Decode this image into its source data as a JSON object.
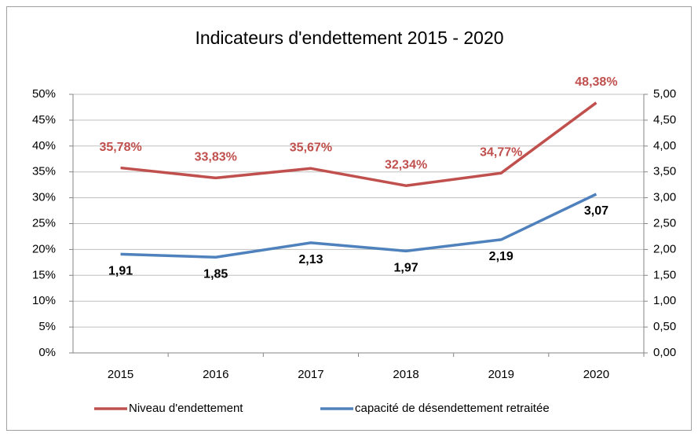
{
  "chart_data": {
    "type": "line",
    "title": "Indicateurs d'endettement 2015 - 2020",
    "categories": [
      "2015",
      "2016",
      "2017",
      "2018",
      "2019",
      "2020"
    ],
    "series": [
      {
        "name": "Niveau d'endettement",
        "color": "#c0504d",
        "values": [
          35.78,
          33.83,
          35.67,
          32.34,
          34.77,
          48.38
        ],
        "value_labels": [
          "35,78%",
          "33,83%",
          "35,67%",
          "32,34%",
          "34,77%",
          "48,38%"
        ]
      },
      {
        "name": "capacité de désendettement retraitée",
        "color": "#4f81bd",
        "axis": "y2",
        "values": [
          1.91,
          1.85,
          2.13,
          1.97,
          2.19,
          3.07
        ],
        "value_labels": [
          "1,91",
          "1,85",
          "2,13",
          "1,97",
          "2,19",
          "3,07"
        ]
      }
    ],
    "ylim": [
      0,
      50
    ],
    "yticks": [
      {
        "value": 0,
        "label": "0%"
      },
      {
        "value": 5,
        "label": "5%"
      },
      {
        "value": 10,
        "label": "10%"
      },
      {
        "value": 15,
        "label": "15%"
      },
      {
        "value": 20,
        "label": "20%"
      },
      {
        "value": 25,
        "label": "25%"
      },
      {
        "value": 30,
        "label": "30%"
      },
      {
        "value": 35,
        "label": "35%"
      },
      {
        "value": 40,
        "label": "40%"
      },
      {
        "value": 45,
        "label": "45%"
      },
      {
        "value": 50,
        "label": "50%"
      }
    ],
    "y2lim": [
      0,
      5
    ],
    "y2ticks": [
      {
        "value": 0,
        "label": "0,00"
      },
      {
        "value": 0.5,
        "label": "0,50"
      },
      {
        "value": 1,
        "label": "1,00"
      },
      {
        "value": 1.5,
        "label": "1,50"
      },
      {
        "value": 2,
        "label": "2,00"
      },
      {
        "value": 2.5,
        "label": "2,50"
      },
      {
        "value": 3,
        "label": "3,00"
      },
      {
        "value": 3.5,
        "label": "3,50"
      },
      {
        "value": 4,
        "label": "4,00"
      },
      {
        "value": 4.5,
        "label": "4,50"
      },
      {
        "value": 5,
        "label": "5,00"
      }
    ],
    "grid": true,
    "legend": "bottom"
  }
}
